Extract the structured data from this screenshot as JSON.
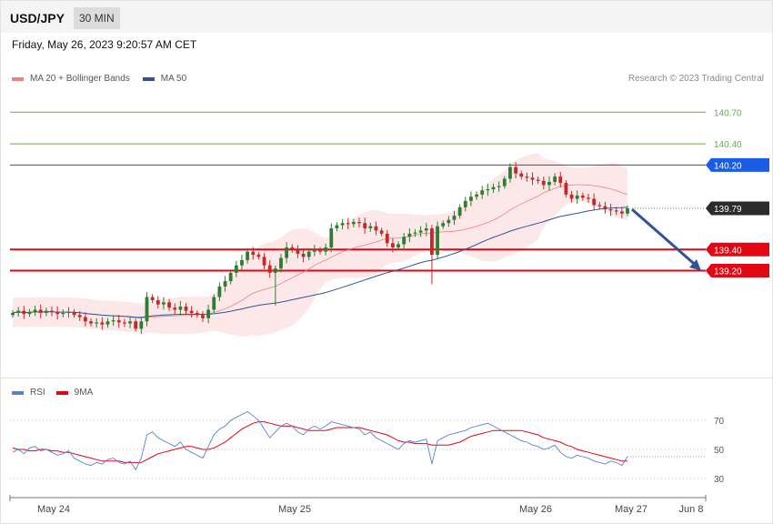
{
  "header": {
    "pair": "USD/JPY",
    "timeframe": "30 MIN",
    "timestamp": "Friday, May 26, 2023 9:20:57 AM CET",
    "copyright": "Research © 2023 Trading Central"
  },
  "colors": {
    "bollinger": "#f08080",
    "ma50": "#2f5597",
    "candle_up": "#2e7d32",
    "candle_down": "#c62828",
    "support": "#e30613",
    "resistance_green": "#6aa84f",
    "resistance_blue": "#2f5597",
    "rsi": "#5b7fd6",
    "rsi_ma": "#e30613",
    "arrow": "#2f5597"
  },
  "chart_data": [
    {
      "type": "candlestick",
      "legend": [
        {
          "name": "MA 20 + Bollinger Bands",
          "color": "#f08080"
        },
        {
          "name": "MA 50",
          "color": "#2f5597"
        }
      ],
      "x_tick_labels": [
        "May 24",
        "May 25",
        "May 26",
        "May 27",
        "Jun 8"
      ],
      "ylim": [
        138.24,
        140.84
      ],
      "levels": [
        {
          "value": 140.7,
          "label": "140.70",
          "kind": "resistance",
          "color": "#6aa84f"
        },
        {
          "value": 140.4,
          "label": "140.40",
          "kind": "resistance",
          "color": "#6aa84f"
        },
        {
          "value": 140.2,
          "label": "140.20",
          "kind": "resistance",
          "color": "#2f5597"
        },
        {
          "value": 139.79,
          "label": "139.79",
          "kind": "last_price",
          "color": "#222222"
        },
        {
          "value": 139.4,
          "label": "139.40",
          "kind": "support",
          "color": "#e30613"
        },
        {
          "value": 139.2,
          "label": "139.20",
          "kind": "support",
          "color": "#e30613"
        }
      ],
      "forecast": {
        "from": 139.78,
        "to": 139.2,
        "direction": "down"
      },
      "close_series": [
        138.8,
        138.82,
        138.79,
        138.81,
        138.83,
        138.8,
        138.82,
        138.81,
        138.79,
        138.8,
        138.81,
        138.78,
        138.76,
        138.72,
        138.7,
        138.71,
        138.69,
        138.72,
        138.73,
        138.71,
        138.7,
        138.72,
        138.65,
        138.72,
        138.95,
        138.92,
        138.88,
        138.9,
        138.85,
        138.83,
        138.86,
        138.82,
        138.8,
        138.78,
        138.75,
        138.83,
        138.95,
        139.05,
        139.1,
        139.18,
        139.25,
        139.3,
        139.38,
        139.35,
        139.33,
        139.25,
        139.18,
        139.22,
        139.32,
        139.42,
        139.4,
        139.36,
        139.33,
        139.38,
        139.4,
        139.38,
        139.42,
        139.6,
        139.63,
        139.65,
        139.64,
        139.66,
        139.65,
        139.6,
        139.62,
        139.58,
        139.55,
        139.46,
        139.42,
        139.45,
        139.52,
        139.55,
        139.56,
        139.58,
        139.6,
        139.35,
        139.62,
        139.65,
        139.68,
        139.72,
        139.8,
        139.86,
        139.9,
        139.92,
        139.96,
        139.97,
        139.99,
        140.0,
        140.07,
        140.18,
        140.12,
        140.09,
        140.08,
        140.06,
        140.05,
        140.01,
        140.04,
        140.09,
        140.03,
        139.92,
        139.88,
        139.91,
        139.89,
        139.88,
        139.82,
        139.81,
        139.78,
        139.77,
        139.76,
        139.74,
        139.79
      ]
    },
    {
      "type": "line",
      "legend": [
        {
          "name": "RSI",
          "color": "#5b7fd6"
        },
        {
          "name": "9MA",
          "color": "#e30613"
        }
      ],
      "y_ticks": [
        70,
        50,
        30
      ],
      "ylim": [
        20,
        80
      ],
      "series": [
        {
          "name": "RSI",
          "values": [
            48,
            50,
            47,
            51,
            52,
            49,
            50,
            48,
            46,
            47,
            49,
            44,
            42,
            40,
            39,
            41,
            40,
            43,
            44,
            41,
            40,
            42,
            36,
            44,
            60,
            62,
            58,
            56,
            54,
            52,
            55,
            50,
            48,
            46,
            44,
            52,
            60,
            64,
            66,
            70,
            72,
            74,
            76,
            73,
            70,
            64,
            58,
            62,
            66,
            68,
            66,
            62,
            60,
            64,
            66,
            64,
            66,
            69,
            68,
            67,
            66,
            65,
            64,
            60,
            62,
            58,
            56,
            54,
            52,
            50,
            54,
            56,
            55,
            56,
            57,
            40,
            56,
            58,
            60,
            61,
            62,
            63,
            65,
            66,
            67,
            68,
            66,
            64,
            62,
            60,
            58,
            56,
            55,
            53,
            52,
            50,
            51,
            53,
            48,
            45,
            44,
            46,
            45,
            44,
            42,
            41,
            40,
            42,
            41,
            39,
            45
          ]
        },
        {
          "name": "9MA",
          "values": [
            51,
            50,
            50,
            49,
            49,
            50,
            50,
            49,
            49,
            48,
            48,
            47,
            46,
            45,
            44,
            43,
            42,
            42,
            42,
            42,
            41,
            41,
            41,
            41,
            43,
            45,
            47,
            48,
            49,
            50,
            51,
            52,
            52,
            51,
            50,
            50,
            51,
            53,
            55,
            58,
            61,
            64,
            66,
            68,
            69,
            69,
            68,
            67,
            66,
            66,
            66,
            65,
            64,
            63,
            63,
            63,
            63,
            64,
            65,
            65,
            65,
            65,
            65,
            64,
            63,
            62,
            61,
            60,
            58,
            56,
            55,
            55,
            54,
            54,
            54,
            53,
            53,
            53,
            53,
            54,
            55,
            57,
            59,
            60,
            61,
            62,
            63,
            63,
            63,
            63,
            63,
            63,
            62,
            61,
            60,
            58,
            57,
            56,
            55,
            53,
            52,
            50,
            49,
            48,
            47,
            46,
            45,
            44,
            43,
            42,
            42
          ]
        }
      ]
    }
  ]
}
